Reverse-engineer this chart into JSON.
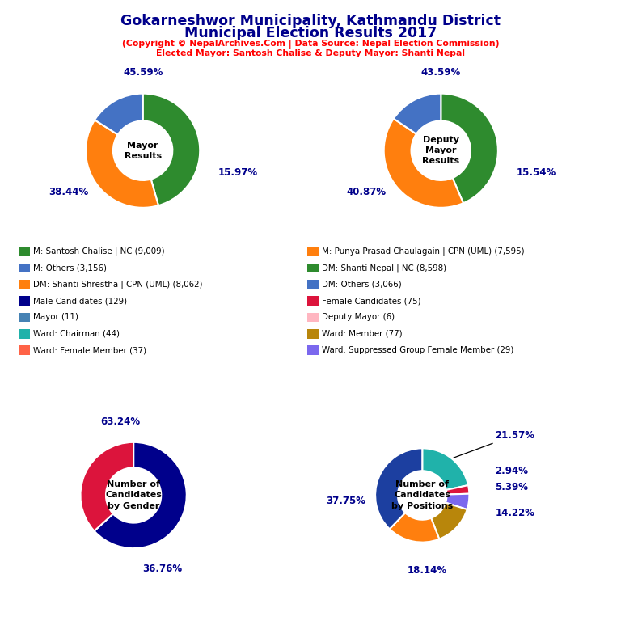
{
  "title_line1": "Gokarneshwor Municipality, Kathmandu District",
  "title_line2": "Municipal Election Results 2017",
  "subtitle1": "(Copyright © NepalArchives.Com | Data Source: Nepal Election Commission)",
  "subtitle2": "Elected Mayor: Santosh Chalise & Deputy Mayor: Shanti Nepal",
  "mayor": {
    "values": [
      45.59,
      38.44,
      15.97
    ],
    "colors": [
      "#2e8b2e",
      "#ff7f0e",
      "#4472c4"
    ],
    "center_text": "Mayor\nResults",
    "pct_labels": [
      "45.59%",
      "38.44%",
      "15.97%"
    ]
  },
  "deputy": {
    "values": [
      43.59,
      40.87,
      15.54
    ],
    "colors": [
      "#2e8b2e",
      "#ff7f0e",
      "#4472c4"
    ],
    "center_text": "Deputy\nMayor\nResults",
    "pct_labels": [
      "43.59%",
      "40.87%",
      "15.54%"
    ]
  },
  "gender": {
    "values": [
      63.24,
      36.76
    ],
    "colors": [
      "#00008b",
      "#dc143c"
    ],
    "center_text": "Number of\nCandidates\nby Gender",
    "pct_labels": [
      "63.24%",
      "36.76%"
    ]
  },
  "positions": {
    "values": [
      21.57,
      2.94,
      5.39,
      14.22,
      18.14,
      37.75
    ],
    "colors": [
      "#20b2aa",
      "#dc143c",
      "#7b68ee",
      "#b8860b",
      "#ff7f0e",
      "#1c3fa0"
    ],
    "center_text": "Number of\nCandidates\nby Positions",
    "pct_labels": [
      "21.57%",
      "2.94%",
      "5.39%",
      "14.22%",
      "18.14%",
      "37.75%"
    ]
  },
  "legend_left": [
    {
      "label": "M: Santosh Chalise | NC (9,009)",
      "color": "#2e8b2e"
    },
    {
      "label": "M: Others (3,156)",
      "color": "#4472c4"
    },
    {
      "label": "DM: Shanti Shrestha | CPN (UML) (8,062)",
      "color": "#ff7f0e"
    },
    {
      "label": "Male Candidates (129)",
      "color": "#00008b"
    },
    {
      "label": "Mayor (11)",
      "color": "#4682b4"
    },
    {
      "label": "Ward: Chairman (44)",
      "color": "#20b2aa"
    },
    {
      "label": "Ward: Female Member (37)",
      "color": "#ff6347"
    }
  ],
  "legend_right": [
    {
      "label": "M: Punya Prasad Chaulagain | CPN (UML) (7,595)",
      "color": "#ff7f0e"
    },
    {
      "label": "DM: Shanti Nepal | NC (8,598)",
      "color": "#2e8b2e"
    },
    {
      "label": "DM: Others (3,066)",
      "color": "#4472c4"
    },
    {
      "label": "Female Candidates (75)",
      "color": "#dc143c"
    },
    {
      "label": "Deputy Mayor (6)",
      "color": "#ffb6c1"
    },
    {
      "label": "Ward: Member (77)",
      "color": "#b8860b"
    },
    {
      "label": "Ward: Suppressed Group Female Member (29)",
      "color": "#7b68ee"
    }
  ],
  "title_color": "#00008b",
  "subtitle_color": "red",
  "pct_color": "#00008b",
  "bg_color": "white"
}
